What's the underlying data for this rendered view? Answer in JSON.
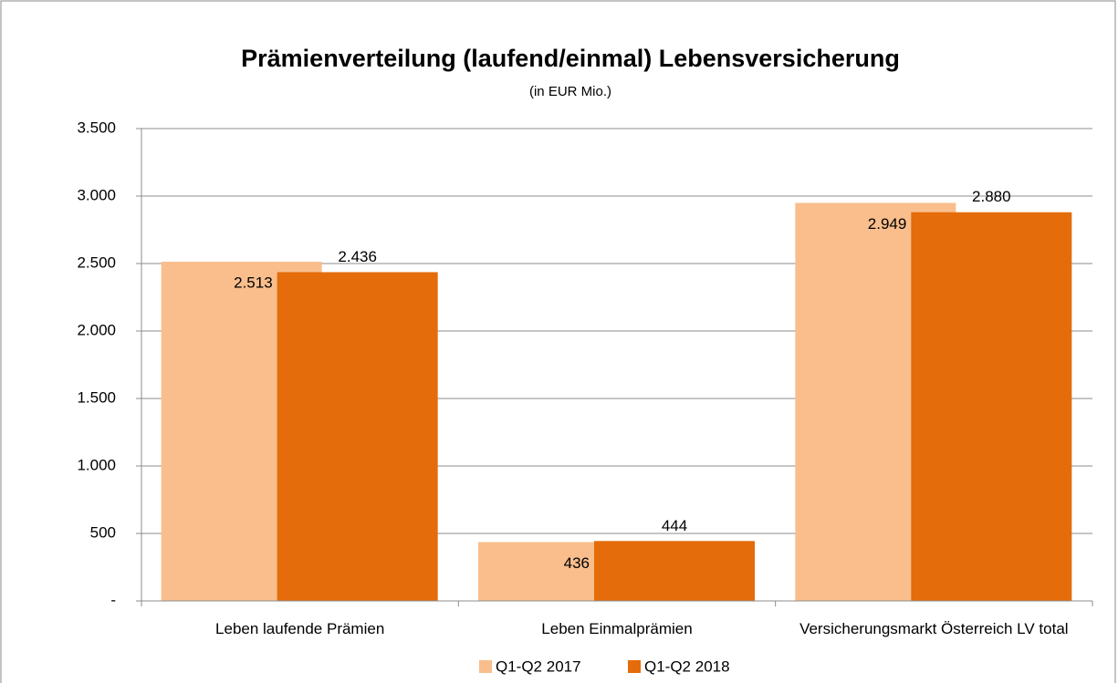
{
  "chart_data": {
    "type": "bar",
    "title": "Prämienverteilung (laufend/einmal) Lebensversicherung",
    "subtitle": "(in EUR Mio.)",
    "categories": [
      "Leben laufende Prämien",
      "Leben Einmalprämien",
      "Versicherungsmarkt Österreich LV total"
    ],
    "series": [
      {
        "name": "Q1-Q2 2017",
        "color": "#f9be8c",
        "values": [
          2513,
          436,
          2949
        ],
        "value_labels": [
          "2.513",
          "436",
          "2.949"
        ]
      },
      {
        "name": "Q1-Q2 2018",
        "color": "#e46c0a",
        "values": [
          2436,
          444,
          2880
        ],
        "value_labels": [
          "2.436",
          "444",
          "2.880"
        ]
      }
    ],
    "ylim": [
      0,
      3500
    ],
    "yticks": [
      {
        "value": 0,
        "label": "-"
      },
      500,
      {
        "value": 1000,
        "label": "1.000"
      },
      {
        "value": 1500,
        "label": "1.500"
      },
      {
        "value": 2000,
        "label": "2.000"
      },
      {
        "value": 2500,
        "label": "2.500"
      },
      {
        "value": 3000,
        "label": "3.000"
      },
      {
        "value": 3500,
        "label": "3.500"
      }
    ],
    "grid": true,
    "legend": "bottom"
  }
}
